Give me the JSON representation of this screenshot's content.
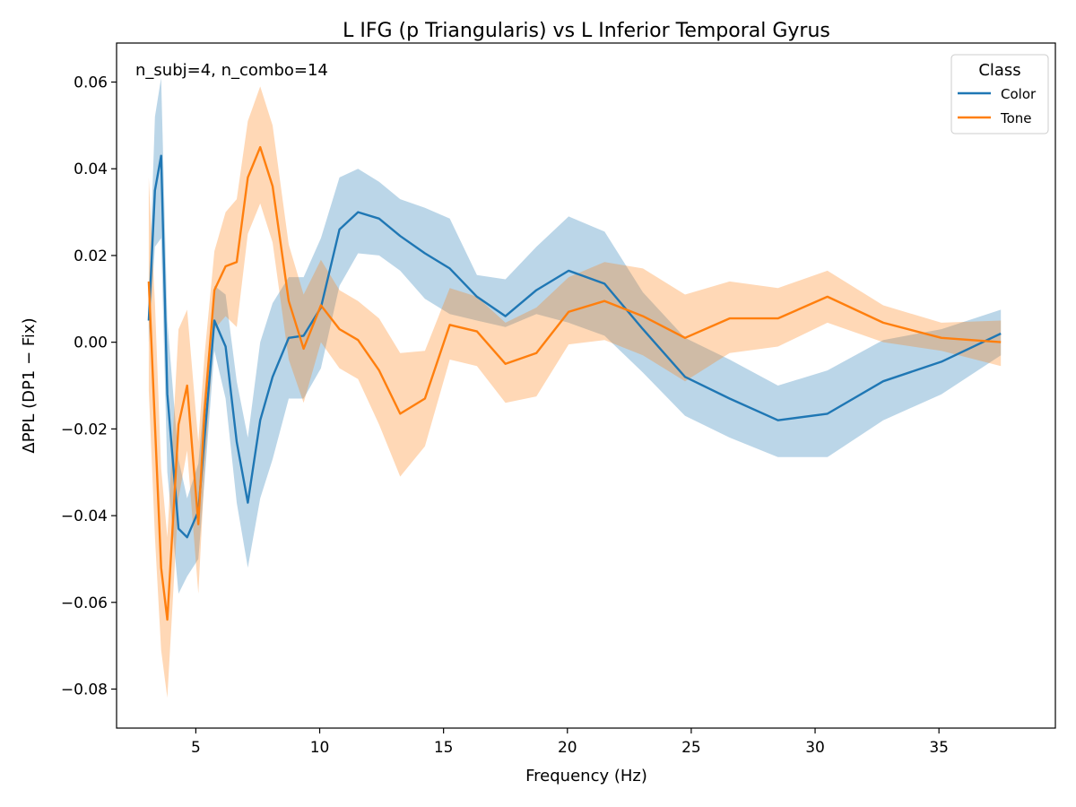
{
  "chart_data": {
    "type": "line",
    "title": "L IFG (p Triangularis) vs L Inferior Temporal Gyrus",
    "xlabel": "Frequency (Hz)",
    "ylabel": "ΔPPL (DP1 − Fix)",
    "annotation": "n_subj=4, n_combo=14",
    "xlim": [
      1.8,
      39.7
    ],
    "ylim": [
      -0.089,
      0.069
    ],
    "xticks": [
      5,
      10,
      15,
      20,
      25,
      30,
      35
    ],
    "xtick_labels": [
      "5",
      "10",
      "15",
      "20",
      "25",
      "30",
      "35"
    ],
    "yticks": [
      -0.08,
      -0.06,
      -0.04,
      -0.02,
      0.0,
      0.02,
      0.04,
      0.06
    ],
    "ytick_labels": [
      "−0.08",
      "−0.06",
      "−0.04",
      "−0.02",
      "0.00",
      "0.02",
      "0.04",
      "0.06"
    ],
    "grid": false,
    "legend": {
      "title": "Class",
      "position": "top-right"
    },
    "x": [
      3.1,
      3.35,
      3.6,
      3.85,
      4.3,
      4.65,
      5.1,
      5.35,
      5.75,
      6.2,
      6.65,
      7.1,
      7.6,
      8.1,
      8.75,
      9.35,
      10.05,
      10.8,
      11.55,
      12.4,
      13.25,
      14.25,
      15.25,
      16.35,
      17.5,
      18.75,
      20.05,
      21.5,
      23.05,
      24.75,
      26.55,
      28.5,
      30.5,
      32.75,
      35.1,
      37.5
    ],
    "series": [
      {
        "name": "Color",
        "color": "#1f77b4",
        "values": [
          0.005,
          0.035,
          0.043,
          -0.012,
          -0.043,
          -0.045,
          -0.039,
          -0.022,
          0.005,
          -0.001,
          -0.023,
          -0.037,
          -0.018,
          -0.008,
          0.001,
          0.0015,
          0.008,
          0.026,
          0.03,
          0.0285,
          0.0245,
          0.0205,
          0.017,
          0.0105,
          0.006,
          0.012,
          0.0165,
          0.0135,
          0.003,
          -0.008,
          -0.013,
          -0.018,
          -0.0165,
          -0.009,
          -0.0045,
          0.002
        ],
        "lower": [
          0.0,
          0.022,
          0.024,
          -0.03,
          -0.058,
          -0.054,
          -0.05,
          -0.032,
          -0.002,
          -0.013,
          -0.037,
          -0.052,
          -0.036,
          -0.027,
          -0.013,
          -0.013,
          -0.006,
          0.013,
          0.0205,
          0.02,
          0.0165,
          0.01,
          0.0065,
          0.005,
          0.0035,
          0.0065,
          0.0045,
          0.0015,
          -0.007,
          -0.017,
          -0.022,
          -0.0265,
          -0.0265,
          -0.018,
          -0.012,
          -0.003
        ],
        "upper": [
          0.01,
          0.052,
          0.061,
          0.005,
          -0.027,
          -0.036,
          -0.028,
          -0.012,
          0.013,
          0.011,
          -0.009,
          -0.022,
          0.0,
          0.009,
          0.015,
          0.015,
          0.024,
          0.038,
          0.04,
          0.037,
          0.033,
          0.031,
          0.0285,
          0.0155,
          0.0145,
          0.022,
          0.029,
          0.0255,
          0.0115,
          0.001,
          -0.004,
          -0.01,
          -0.0065,
          0.0005,
          0.003,
          0.0075
        ]
      },
      {
        "name": "Tone",
        "color": "#ff7f0e",
        "values": [
          0.014,
          -0.019,
          -0.052,
          -0.064,
          -0.019,
          -0.01,
          -0.042,
          -0.016,
          0.012,
          0.0175,
          0.0185,
          0.038,
          0.045,
          0.036,
          0.0095,
          -0.0015,
          0.0085,
          0.003,
          0.0005,
          -0.0065,
          -0.0165,
          -0.013,
          0.004,
          0.0025,
          -0.005,
          -0.0025,
          0.007,
          0.0095,
          0.006,
          0.001,
          0.0055,
          0.0055,
          0.0105,
          0.0045,
          0.001,
          0.0
        ],
        "lower": [
          -0.011,
          -0.045,
          -0.071,
          -0.082,
          -0.036,
          -0.025,
          -0.058,
          -0.03,
          0.003,
          0.006,
          0.0035,
          0.025,
          0.032,
          0.023,
          -0.004,
          -0.014,
          0.0,
          -0.006,
          -0.0085,
          -0.019,
          -0.031,
          -0.024,
          -0.004,
          -0.0055,
          -0.014,
          -0.0125,
          -0.0005,
          0.0005,
          -0.003,
          -0.009,
          -0.0025,
          -0.001,
          0.0045,
          0.0,
          -0.002,
          -0.0055
        ],
        "upper": [
          0.038,
          0.009,
          -0.029,
          -0.045,
          0.003,
          0.0075,
          -0.023,
          -0.003,
          0.021,
          0.03,
          0.033,
          0.051,
          0.059,
          0.05,
          0.0225,
          0.011,
          0.019,
          0.012,
          0.0095,
          0.0055,
          -0.0025,
          -0.002,
          0.0125,
          0.0105,
          0.0045,
          0.008,
          0.015,
          0.0185,
          0.017,
          0.011,
          0.014,
          0.0125,
          0.0165,
          0.0085,
          0.0045,
          0.005
        ]
      }
    ]
  }
}
